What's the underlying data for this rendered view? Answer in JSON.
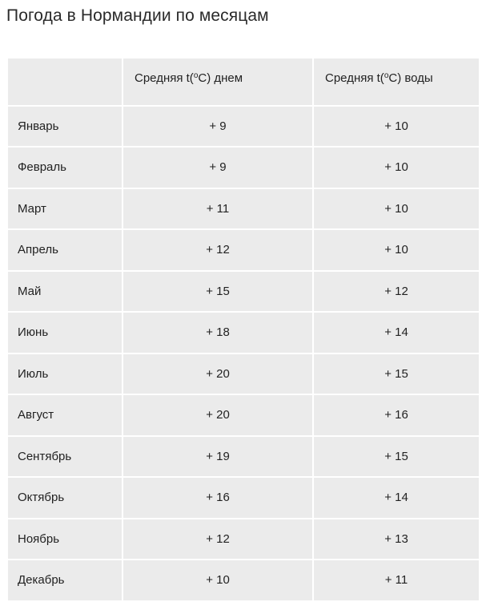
{
  "title": "Погода в Нормандии по месяцам",
  "table": {
    "header": {
      "month": "",
      "day_prefix": "Средняя t(",
      "day_sup": "o",
      "day_suffix": "C) днем",
      "water_prefix": "Средняя t(",
      "water_sup": "o",
      "water_suffix": "C) воды"
    },
    "rows": [
      {
        "month": "Январь",
        "day": "+ 9",
        "water": "+ 10"
      },
      {
        "month": "Февраль",
        "day": "+ 9",
        "water": "+ 10"
      },
      {
        "month": "Март",
        "day": "+ 11",
        "water": "+ 10"
      },
      {
        "month": "Апрель",
        "day": "+ 12",
        "water": "+ 10"
      },
      {
        "month": "Май",
        "day": "+ 15",
        "water": "+ 12"
      },
      {
        "month": "Июнь",
        "day": "+ 18",
        "water": "+ 14"
      },
      {
        "month": "Июль",
        "day": "+ 20",
        "water": "+ 15"
      },
      {
        "month": "Август",
        "day": "+ 20",
        "water": "+ 16"
      },
      {
        "month": "Сентябрь",
        "day": "+ 19",
        "water": "+ 15"
      },
      {
        "month": "Октябрь",
        "day": "+ 16",
        "water": "+ 14"
      },
      {
        "month": "Ноябрь",
        "day": "+ 12",
        "water": "+ 13"
      },
      {
        "month": "Декабрь",
        "day": "+ 10",
        "water": "+ 11"
      }
    ]
  },
  "colors": {
    "cell_background": "#ebebeb",
    "text": "#222222",
    "title": "#2a2a2a"
  }
}
